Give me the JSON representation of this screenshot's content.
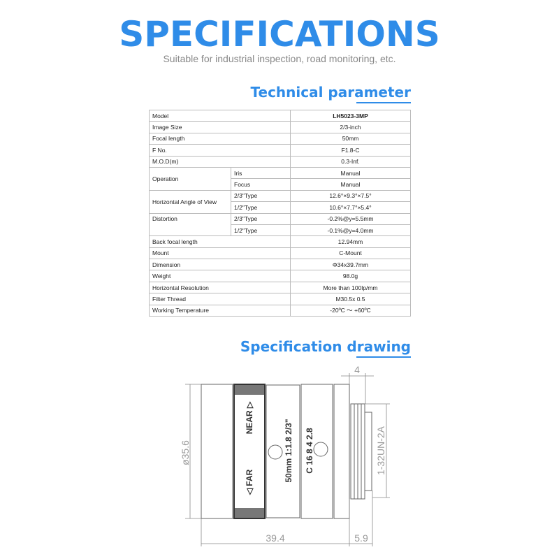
{
  "header": {
    "title": "SPECIFICATIONS",
    "subtitle": "Suitable for industrial inspection, road monitoring, etc."
  },
  "sections": {
    "technical": "Technical parameter",
    "drawing": "Specification drawing"
  },
  "table": {
    "model": {
      "label": "Model",
      "value": "LH5023-3MP"
    },
    "image_size": {
      "label": "Image Size",
      "value": "2/3-inch"
    },
    "focal_length": {
      "label": "Focal length",
      "value": "50mm"
    },
    "f_no": {
      "label": "F No.",
      "value": "F1.8-C"
    },
    "mod": {
      "label": "M.O.D(m)",
      "value": "0.3-Inf."
    },
    "operation": {
      "label": "Operation",
      "iris_label": "Iris",
      "iris": "Manual",
      "focus_label": "Focus",
      "focus": "Manual"
    },
    "angle": {
      "label": "Horizontal Angle of View",
      "t1_label": "2/3\"Type",
      "t1": "12.6°×9.3°×7.5°",
      "t2_label": "1/2\"Type",
      "t2": "10.6°×7.7°×5.4°"
    },
    "distortion": {
      "label": "Distortion",
      "t1_label": "2/3\"Type",
      "t1": "-0.2%@y=5.5mm",
      "t2_label": "1/2\"Type",
      "t2": "-0.1%@y=4.0mm"
    },
    "back_focal": {
      "label": "Back focal length",
      "value": "12.94mm"
    },
    "mount": {
      "label": "Mount",
      "value": "C-Mount"
    },
    "dimension": {
      "label": "Dimension",
      "value": "Φ34x39.7mm"
    },
    "weight": {
      "label": "Weight",
      "value": "98.0g"
    },
    "resolution": {
      "label": "Horizontal Resolution",
      "value": "More than 100lp/mm"
    },
    "filter": {
      "label": "Filter Thread",
      "value": "M30.5x 0.5"
    },
    "temperature": {
      "label": "Working Temperature",
      "value": "-20ºC ～ +60ºC"
    }
  },
  "drawing": {
    "dim_diameter": "ø35.6",
    "dim_length": "39.4",
    "dim_mount_len": "5.9",
    "dim_top": "4",
    "dim_thread": "1-32UN-2A",
    "ring_near": "NEAR ▷",
    "ring_far": "◁ FAR",
    "lens_text1": "50mm 1:1.8 2/3\"",
    "lens_text2": "C 16 8 4 2.8"
  },
  "colors": {
    "accent": "#2f8ce8"
  }
}
